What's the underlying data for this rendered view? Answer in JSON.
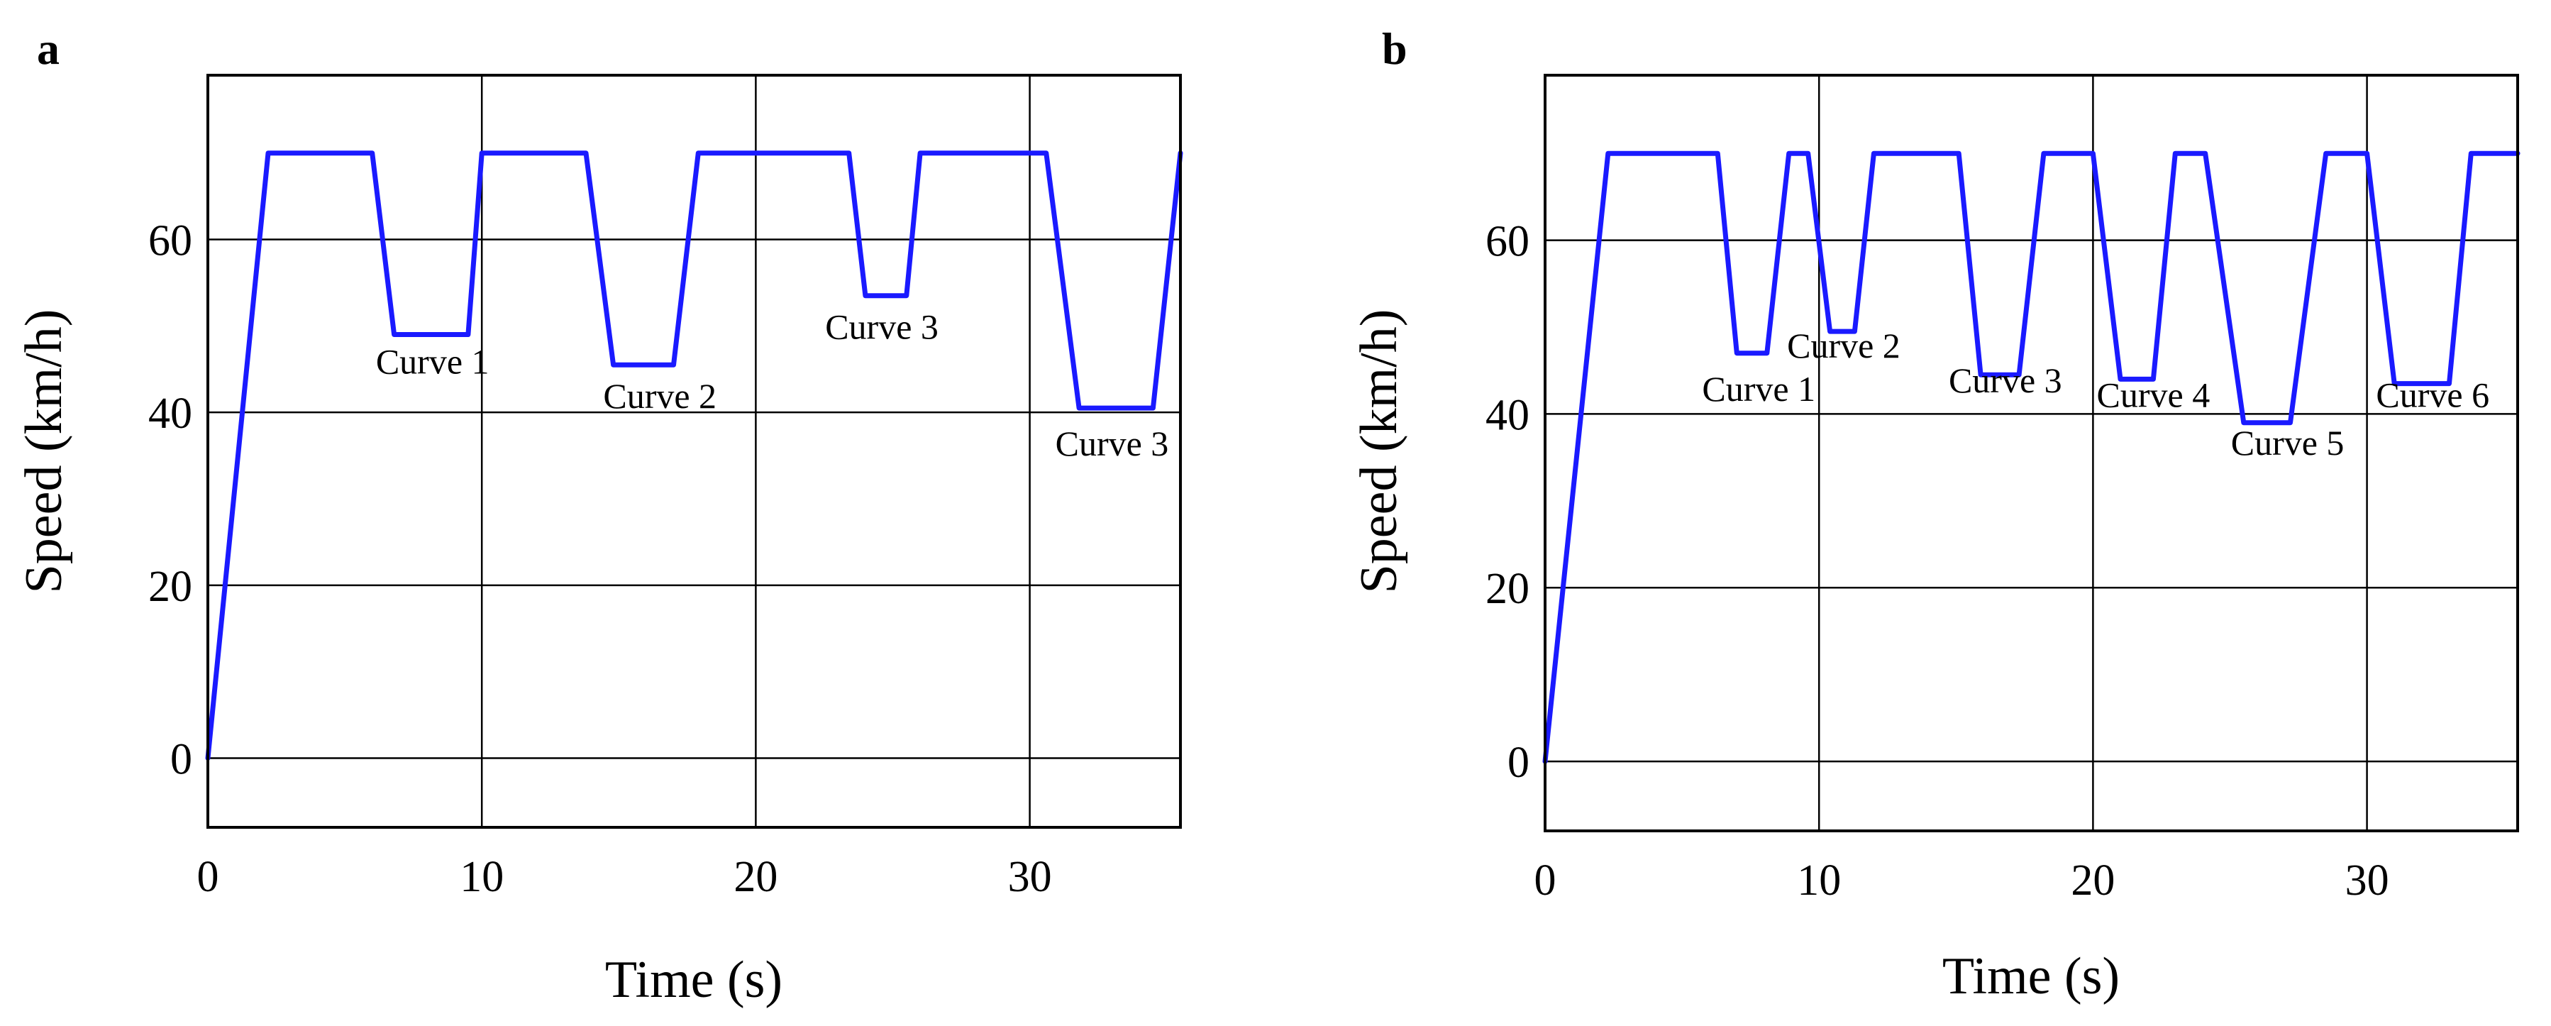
{
  "chart_data": [
    {
      "panel": "a",
      "type": "line",
      "title": "",
      "xlabel": "Time (s)",
      "ylabel": "Speed (km/h)",
      "xlim": [
        0,
        35.5
      ],
      "ylim": [
        -8,
        79
      ],
      "xticks": [
        0,
        10,
        20,
        30
      ],
      "yticks": [
        0,
        20,
        40,
        60
      ],
      "grid": true,
      "line_color": "#1a1aff",
      "series": [
        {
          "name": "speed",
          "x": [
            0,
            2.2,
            6.0,
            6.8,
            9.5,
            10.0,
            13.8,
            14.8,
            17.0,
            17.9,
            23.4,
            24.0,
            25.5,
            26.0,
            30.6,
            31.8,
            34.5,
            35.5
          ],
          "y": [
            0,
            70,
            70,
            49,
            49,
            70,
            70,
            45.5,
            45.5,
            70,
            70,
            53.5,
            53.5,
            70,
            70,
            40.5,
            40.5,
            70
          ]
        }
      ],
      "annotations": [
        {
          "text": "Curve 1",
          "x": 8.2,
          "y": 44.5
        },
        {
          "text": "Curve 2",
          "x": 16.5,
          "y": 40.5
        },
        {
          "text": "Curve 3",
          "x": 24.6,
          "y": 48.5
        },
        {
          "text": "Curve 3",
          "x": 33.0,
          "y": 35.0
        }
      ]
    },
    {
      "panel": "b",
      "type": "line",
      "title": "",
      "xlabel": "Time (s)",
      "ylabel": "Speed (km/h)",
      "xlim": [
        0,
        35.5
      ],
      "ylim": [
        -8,
        79
      ],
      "xticks": [
        0,
        10,
        20,
        30
      ],
      "yticks": [
        0,
        20,
        40,
        60
      ],
      "grid": true,
      "line_color": "#1a1aff",
      "series": [
        {
          "name": "speed",
          "x": [
            0,
            2.3,
            6.3,
            7.0,
            8.1,
            8.9,
            9.6,
            10.4,
            11.3,
            12.0,
            15.1,
            15.9,
            17.3,
            18.2,
            20.0,
            21.0,
            22.2,
            23.0,
            24.1,
            25.5,
            27.2,
            28.5,
            30.0,
            31.0,
            33.0,
            33.8,
            35.5
          ],
          "y": [
            0,
            70,
            70,
            47,
            47,
            70,
            70,
            49.5,
            49.5,
            70,
            70,
            44.5,
            44.5,
            70,
            70,
            44,
            44,
            70,
            70,
            39,
            39,
            70,
            70,
            43.5,
            43.5,
            70,
            70
          ]
        }
      ],
      "annotations": [
        {
          "text": "Curve 1",
          "x": 7.8,
          "y": 41.5
        },
        {
          "text": "Curve 2",
          "x": 10.9,
          "y": 46.5
        },
        {
          "text": "Curve 3",
          "x": 16.8,
          "y": 42.5
        },
        {
          "text": "Curve 4",
          "x": 22.2,
          "y": 40.8
        },
        {
          "text": "Curve 5",
          "x": 27.1,
          "y": 35.3
        },
        {
          "text": "Curve 6",
          "x": 32.4,
          "y": 40.8
        }
      ]
    }
  ]
}
